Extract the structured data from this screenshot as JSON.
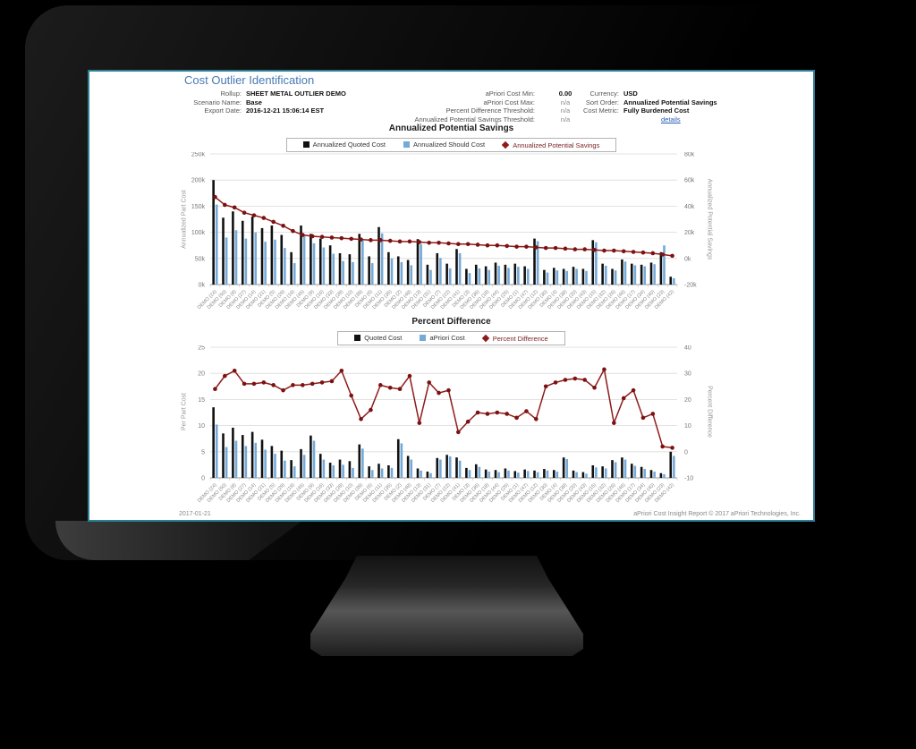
{
  "report": {
    "title": "Cost Outlier Identification",
    "header": {
      "left": [
        {
          "label": "Rollup:",
          "value": "SHEET METAL OUTLIER DEMO"
        },
        {
          "label": "Scenario Name:",
          "value": "Base"
        },
        {
          "label": "Export Date:",
          "value": "2016-12-21 15:06:14 EST"
        }
      ],
      "middle": [
        {
          "label": "aPriori Cost Min:",
          "value": "0.00"
        },
        {
          "label": "aPriori Cost Max:",
          "value": "n/a"
        },
        {
          "label": "Percent Difference Threshold:",
          "value": "n/a"
        },
        {
          "label": "Annualized Potential Savings Threshold:",
          "value": "n/a"
        }
      ],
      "right": [
        {
          "label": "Currency:",
          "value": "USD"
        },
        {
          "label": "Sort Order:",
          "value": "Annualized Potential Savings"
        },
        {
          "label": "Cost Metric:",
          "value": "Fully Burdened Cost"
        }
      ],
      "details_link": "details"
    },
    "footer": {
      "date": "2017-01-21",
      "copyright": "aPriori Cost Insight Report © 2017 aPriori Technologies, Inc."
    }
  },
  "chart_data": [
    {
      "type": "bar",
      "title": "Annualized Potential Savings",
      "categories": [
        "DEMO (24)",
        "DEMO (50)",
        "DEMO (8)",
        "DEMO (27)",
        "DEMO (14)",
        "DEMO (21)",
        "DEMO (5)",
        "DEMO (29)",
        "DEMO (19)",
        "DEMO (45)",
        "DEMO (9)",
        "DEMO (16)",
        "DEMO (33)",
        "DEMO (28)",
        "DEMO (10)",
        "DEMO (39)",
        "DEMO (6)",
        "DEMO (11)",
        "DEMO (35)",
        "DEMO (2)",
        "DEMO (48)",
        "DEMO (13)",
        "DEMO (31)",
        "DEMO (7)",
        "DEMO (22)",
        "DEMO (41)",
        "DEMO (3)",
        "DEMO (36)",
        "DEMO (18)",
        "DEMO (44)",
        "DEMO (25)",
        "DEMO (1)",
        "DEMO (47)",
        "DEMO (12)",
        "DEMO (30)",
        "DEMO (4)",
        "DEMO (38)",
        "DEMO (20)",
        "DEMO (43)",
        "DEMO (15)",
        "DEMO (32)",
        "DEMO (26)",
        "DEMO (46)",
        "DEMO (17)",
        "DEMO (34)",
        "DEMO (40)",
        "DEMO (23)",
        "DEMO (42)"
      ],
      "series": [
        {
          "name": "Annualized Quoted Cost",
          "color": "#111111",
          "values": [
            200,
            128,
            140,
            122,
            130,
            108,
            113,
            95,
            62,
            113,
            97,
            88,
            75,
            60,
            58,
            97,
            54,
            110,
            62,
            54,
            47,
            87,
            38,
            60,
            40,
            68,
            30,
            38,
            35,
            42,
            38,
            40,
            35,
            88,
            28,
            32,
            30,
            34,
            30,
            85,
            40,
            30,
            48,
            40,
            38,
            42,
            62,
            15
          ]
        },
        {
          "name": "Annualized Should Cost",
          "color": "#74a9d8",
          "values": [
            153,
            90,
            104,
            88,
            100,
            82,
            86,
            70,
            41,
            93,
            79,
            71,
            59,
            45,
            43,
            84,
            41,
            98,
            50,
            43,
            37,
            77,
            28,
            51,
            31,
            60,
            22,
            31,
            28,
            36,
            32,
            34,
            30,
            83,
            23,
            27,
            26,
            30,
            26,
            81,
            36,
            27,
            44,
            37,
            35,
            39,
            75,
            12
          ]
        }
      ],
      "line": {
        "name": "Annualized Potential Savings",
        "color": "#8e1b1b",
        "marker_color": "#7c1111",
        "axis": "right",
        "values": [
          47,
          41,
          39,
          35,
          33,
          31,
          28,
          25,
          21,
          18,
          17,
          16.5,
          16,
          15.5,
          15,
          14.5,
          14,
          14,
          13.5,
          13,
          13,
          12.5,
          12,
          12,
          11.5,
          11,
          11,
          10.5,
          10,
          10,
          9.5,
          9,
          9,
          8.5,
          8,
          8,
          7.5,
          7,
          7,
          6.5,
          6,
          6,
          5.5,
          5,
          4.5,
          4,
          3,
          2
        ]
      },
      "left_axis": {
        "label": "Annualized Part Cost",
        "min": 0,
        "max": 250,
        "ticks": [
          "0k",
          "50k",
          "100k",
          "150k",
          "200k",
          "250k"
        ]
      },
      "right_axis": {
        "label": "Annualized Potential Savings",
        "min": -20,
        "max": 80,
        "ticks": [
          "-20k",
          "0k",
          "20k",
          "40k",
          "60k",
          "80k"
        ]
      },
      "legend_position": "top",
      "grid": true
    },
    {
      "type": "bar",
      "title": "Percent Difference",
      "categories": [
        "DEMO (24)",
        "DEMO (50)",
        "DEMO (8)",
        "DEMO (27)",
        "DEMO (14)",
        "DEMO (21)",
        "DEMO (5)",
        "DEMO (29)",
        "DEMO (19)",
        "DEMO (45)",
        "DEMO (9)",
        "DEMO (16)",
        "DEMO (33)",
        "DEMO (28)",
        "DEMO (10)",
        "DEMO (39)",
        "DEMO (6)",
        "DEMO (11)",
        "DEMO (35)",
        "DEMO (2)",
        "DEMO (48)",
        "DEMO (13)",
        "DEMO (31)",
        "DEMO (7)",
        "DEMO (22)",
        "DEMO (41)",
        "DEMO (3)",
        "DEMO (36)",
        "DEMO (18)",
        "DEMO (44)",
        "DEMO (25)",
        "DEMO (1)",
        "DEMO (47)",
        "DEMO (12)",
        "DEMO (30)",
        "DEMO (4)",
        "DEMO (38)",
        "DEMO (20)",
        "DEMO (43)",
        "DEMO (15)",
        "DEMO (32)",
        "DEMO (26)",
        "DEMO (46)",
        "DEMO (17)",
        "DEMO (34)",
        "DEMO (40)",
        "DEMO (23)",
        "DEMO (42)"
      ],
      "series": [
        {
          "name": "Quoted Cost",
          "color": "#111111",
          "values": [
            13.5,
            8.5,
            9.6,
            8.2,
            8.8,
            7.3,
            6.1,
            5.2,
            3.4,
            5.5,
            8.1,
            4.6,
            2.9,
            3.5,
            3.2,
            6.4,
            2.2,
            2.7,
            2.4,
            7.4,
            4.2,
            1.8,
            1.2,
            3.8,
            4.4,
            3.9,
            1.9,
            2.6,
            1.6,
            1.5,
            1.8,
            1.3,
            1.6,
            1.4,
            1.7,
            1.5,
            3.9,
            1.4,
            1.1,
            2.4,
            2.2,
            3.4,
            3.9,
            2.7,
            2.1,
            1.5,
            0.9,
            5.0
          ]
        },
        {
          "name": "aPriori Cost",
          "color": "#74a9d8",
          "values": [
            10.2,
            5.9,
            7.1,
            6.1,
            6.7,
            5.4,
            4.6,
            3.3,
            2.2,
            4.4,
            7.1,
            3.5,
            2.4,
            2.5,
            1.9,
            5.6,
            1.5,
            1.8,
            1.9,
            6.6,
            3.5,
            1.4,
            0.9,
            3.5,
            4.1,
            3.3,
            1.5,
            2.1,
            1.2,
            1.1,
            1.4,
            1.0,
            1.3,
            1.1,
            1.4,
            1.2,
            3.6,
            1.1,
            0.8,
            2.0,
            1.8,
            3.0,
            3.5,
            2.3,
            1.7,
            1.2,
            0.7,
            4.2
          ]
        }
      ],
      "line": {
        "name": "Percent Difference",
        "color": "#8e1b1b",
        "marker_color": "#7c1111",
        "axis": "right",
        "values": [
          24,
          29,
          31,
          26,
          26,
          26.5,
          25.5,
          23.5,
          25.5,
          25.5,
          26,
          26.5,
          27,
          31,
          21.5,
          12.5,
          16,
          25.5,
          24.5,
          24,
          29,
          11,
          26.5,
          22.5,
          23.5,
          7.5,
          11.5,
          15,
          14.5,
          15,
          14.5,
          13,
          15.5,
          12.5,
          25,
          26.5,
          27.5,
          28,
          27.5,
          24.5,
          31.5,
          11,
          20.5,
          23.5,
          13,
          14.5,
          2,
          1.5
        ]
      },
      "left_axis": {
        "label": "Per Part Cost",
        "min": 0,
        "max": 25,
        "ticks": [
          "0",
          "5",
          "10",
          "15",
          "20",
          "25"
        ]
      },
      "right_axis": {
        "label": "Percent Difference",
        "min": -10,
        "max": 40,
        "ticks": [
          "-10",
          "0",
          "10",
          "20",
          "30",
          "40"
        ]
      },
      "legend_position": "top",
      "grid": true
    }
  ]
}
